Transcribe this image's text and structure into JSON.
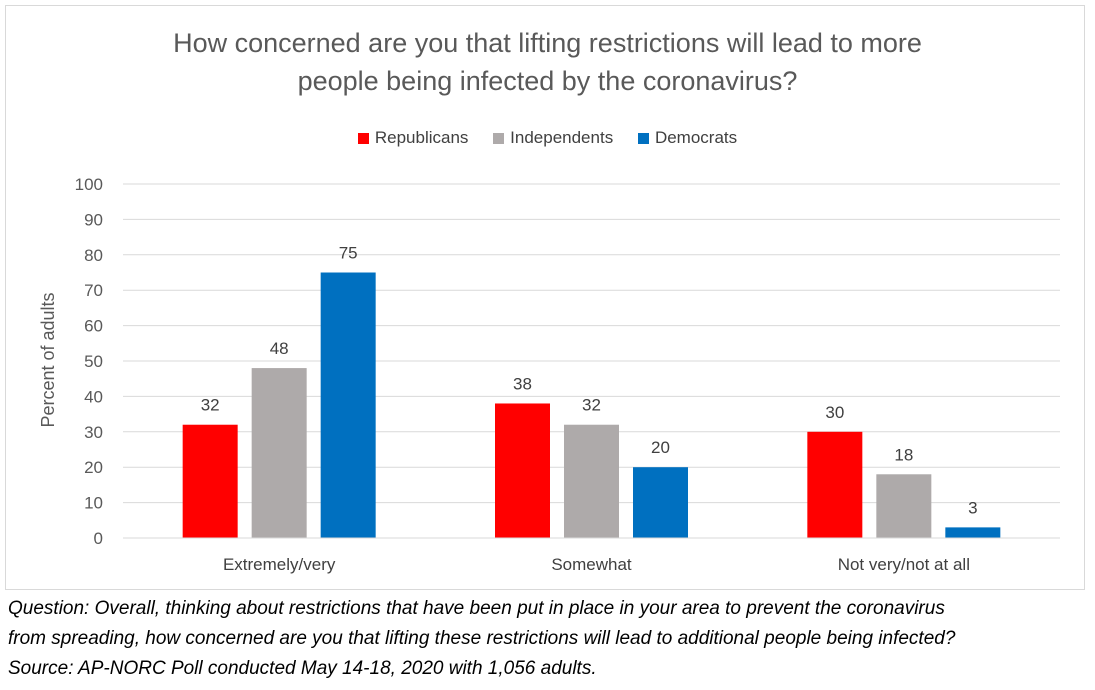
{
  "chart_data": {
    "type": "bar",
    "title_lines": [
      "How concerned are you that lifting restrictions will lead to more",
      "people being infected by the coronavirus?"
    ],
    "categories": [
      "Extremely/very",
      "Somewhat",
      "Not very/not at all"
    ],
    "series": [
      {
        "name": "Republicans",
        "color": "#ff0000",
        "values": [
          32,
          38,
          30
        ]
      },
      {
        "name": "Independents",
        "color": "#aeaaaa",
        "values": [
          48,
          32,
          18
        ]
      },
      {
        "name": "Democrats",
        "color": "#0070c0",
        "values": [
          75,
          20,
          3
        ]
      }
    ],
    "xlabel": "",
    "ylabel": "Percent of adults",
    "ylim": [
      0,
      100
    ],
    "yticks": [
      0,
      10,
      20,
      30,
      40,
      50,
      60,
      70,
      80,
      90,
      100
    ],
    "grid": true,
    "legend_position": "top"
  },
  "footnote": {
    "line1": "Question: Overall, thinking about restrictions that have been put in place in your area to prevent the coronavirus",
    "line2": "from spreading, how concerned are you that lifting these restrictions will lead to additional people being infected?",
    "line3": "Source: AP-NORC Poll conducted May 14-18, 2020 with 1,056 adults."
  }
}
